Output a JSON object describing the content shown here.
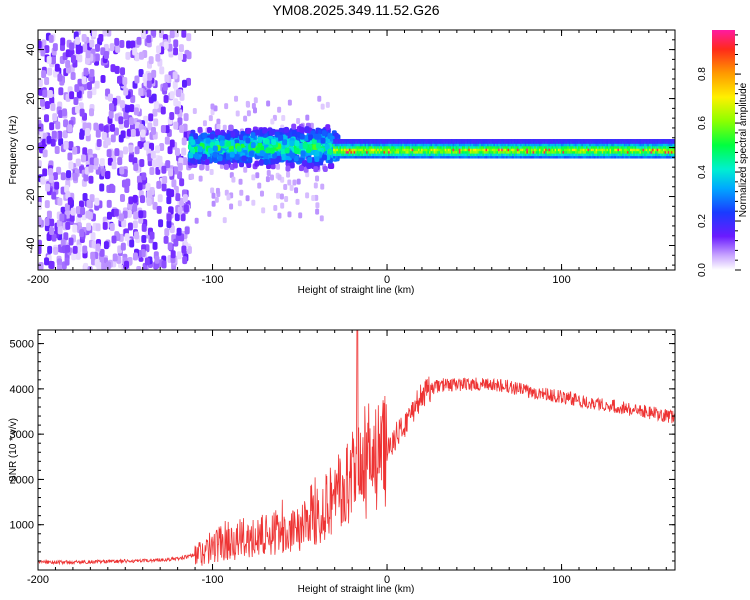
{
  "title": "YM08.2025.349.11.52.G26",
  "chart_data": [
    {
      "type": "heatmap",
      "title": "YM08.2025.349.11.52.G26",
      "xlabel": "Height of straight line (km)",
      "ylabel": "Frequency (Hz)",
      "xlim": [
        -200,
        165
      ],
      "ylim": [
        -50,
        48
      ],
      "xticks": [
        -200,
        -100,
        0,
        100
      ],
      "yticks": [
        -40,
        -20,
        0,
        20,
        40
      ],
      "colorbar": {
        "label": "Normalized spectral amplitude",
        "range": [
          0,
          0.98
        ],
        "ticks": [
          "0.0",
          "0.2",
          "0.4",
          "0.6",
          "0.8"
        ],
        "colormap": "rainbow (white → purple → blue → cyan → green → yellow → orange → red → magenta)"
      },
      "regions": [
        {
          "x_range": [
            -200,
            -113
          ],
          "freq_range": [
            -50,
            48
          ],
          "amplitude": "low (0.0–0.1), broadband noise"
        },
        {
          "x_range": [
            -113,
            -30
          ],
          "freq_range": [
            -8,
            8
          ],
          "amplitude": "medium (0.1–0.5), cyan/green clusters"
        },
        {
          "x_range": [
            -30,
            165
          ],
          "freq_range": [
            -3,
            2
          ],
          "amplitude": "high (0.5–0.98), narrow carrier line near 0 Hz"
        }
      ]
    },
    {
      "type": "line",
      "xlabel": "Height of straight line (km)",
      "ylabel": "SNR (10 * v/v)",
      "xlim": [
        -200,
        165
      ],
      "ylim": [
        0,
        5300
      ],
      "xticks": [
        -200,
        -100,
        0,
        100
      ],
      "yticks": [
        1000,
        2000,
        3000,
        4000,
        5000
      ],
      "color": "#ee3333",
      "series": [
        {
          "name": "SNR",
          "x": [
            -200,
            -180,
            -160,
            -140,
            -120,
            -110,
            -100,
            -95,
            -90,
            -85,
            -80,
            -75,
            -70,
            -65,
            -60,
            -55,
            -50,
            -45,
            -40,
            -35,
            -30,
            -25,
            -20,
            -15,
            -10,
            -5,
            0,
            5,
            10,
            15,
            20,
            25,
            30,
            40,
            50,
            60,
            70,
            80,
            90,
            100,
            110,
            120,
            130,
            140,
            150,
            160,
            165
          ],
          "values": [
            180,
            170,
            190,
            200,
            250,
            330,
            500,
            620,
            680,
            660,
            720,
            760,
            740,
            800,
            880,
            950,
            1000,
            1150,
            1300,
            1450,
            1650,
            1800,
            2000,
            2150,
            2300,
            2450,
            2650,
            2950,
            3200,
            3550,
            3850,
            4000,
            4080,
            4100,
            4100,
            4080,
            4050,
            3950,
            3900,
            3820,
            3750,
            3680,
            3620,
            3550,
            3480,
            3400,
            3380
          ],
          "spike_max": {
            "x": -17,
            "y": 5300
          }
        }
      ]
    }
  ]
}
